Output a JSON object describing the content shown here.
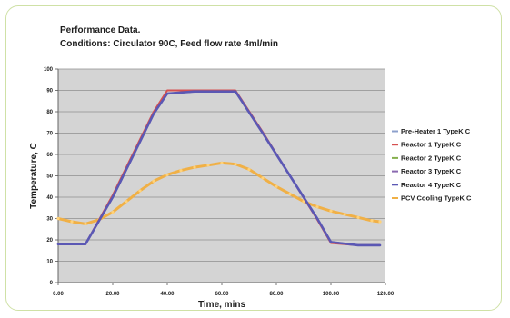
{
  "chart_data": {
    "type": "line",
    "title_line1": "Performance Data.",
    "title_line2": "Conditions: Circulator 90C, Feed flow rate 4ml/min",
    "xlabel": "Time, mins",
    "ylabel": "Temperature, C",
    "xlim": [
      0,
      120
    ],
    "ylim": [
      0,
      100
    ],
    "x_tick_labels": [
      "0.00",
      "20.00",
      "40.00",
      "60.00",
      "80.00",
      "100.00",
      "120.00"
    ],
    "y_tick_labels": [
      "0",
      "10",
      "20",
      "30",
      "40",
      "50",
      "60",
      "70",
      "80",
      "90",
      "100"
    ],
    "grid": true,
    "legend_position": "right",
    "plot_background": "#d4d4d4",
    "series": [
      {
        "name": "Pre-Heater 1 TypeK C",
        "color": "#8da0cc",
        "x": [
          0,
          10,
          20,
          30,
          35,
          40,
          50,
          60,
          65,
          75,
          85,
          95,
          100,
          110,
          118
        ],
        "y": [
          18,
          18,
          40,
          66,
          79,
          88.5,
          89.5,
          89.5,
          89.5,
          70,
          50,
          30,
          19,
          17.5,
          17.5
        ]
      },
      {
        "name": "Reactor 1 TypeK C",
        "color": "#d65050",
        "x": [
          0,
          10,
          20,
          30,
          35,
          40,
          50,
          60,
          65,
          75,
          85,
          95,
          100,
          110,
          118
        ],
        "y": [
          18,
          18,
          41,
          67,
          80,
          90,
          90,
          90,
          90,
          70.5,
          50,
          29.5,
          18.5,
          17.5,
          17.5
        ]
      },
      {
        "name": "Reactor 2 TypeK C",
        "color": "#86b04e",
        "x": [
          0,
          10,
          20,
          30,
          35,
          40,
          50,
          60,
          65,
          75,
          85,
          95,
          100,
          110,
          118
        ],
        "y": [
          18,
          18,
          40,
          66,
          79,
          88.5,
          89.5,
          89.5,
          89.5,
          70,
          50,
          30,
          19,
          17.5,
          17.5
        ]
      },
      {
        "name": "Reactor 3 TypeK C",
        "color": "#8a69b0",
        "x": [
          0,
          10,
          20,
          30,
          35,
          40,
          50,
          60,
          65,
          75,
          85,
          95,
          100,
          110,
          118
        ],
        "y": [
          18,
          18,
          40,
          66,
          79,
          88.5,
          89.5,
          89.5,
          89.5,
          70,
          50,
          30,
          19,
          17.5,
          17.5
        ]
      },
      {
        "name": "Reactor 4 TypeK C",
        "color": "#5b58b4",
        "x": [
          0,
          10,
          20,
          30,
          35,
          40,
          50,
          60,
          65,
          75,
          85,
          95,
          100,
          110,
          118
        ],
        "y": [
          18,
          18,
          40,
          66,
          79,
          88.5,
          89.5,
          89.5,
          89.5,
          70,
          50,
          30,
          19,
          17.5,
          17.5
        ]
      },
      {
        "name": "PCV Cooling TypeK C",
        "color": "#f0b046",
        "x": [
          0,
          5,
          10,
          15,
          20,
          25,
          30,
          35,
          40,
          45,
          50,
          55,
          60,
          65,
          70,
          75,
          80,
          85,
          90,
          95,
          100,
          105,
          110,
          115,
          118
        ],
        "y": [
          30,
          28.5,
          27.5,
          29.5,
          33,
          38,
          43,
          47.5,
          50.5,
          52.5,
          54,
          55,
          56,
          55.5,
          53,
          49,
          45,
          41.5,
          38,
          35.5,
          33.5,
          32,
          30.5,
          29,
          28.5
        ]
      }
    ]
  }
}
